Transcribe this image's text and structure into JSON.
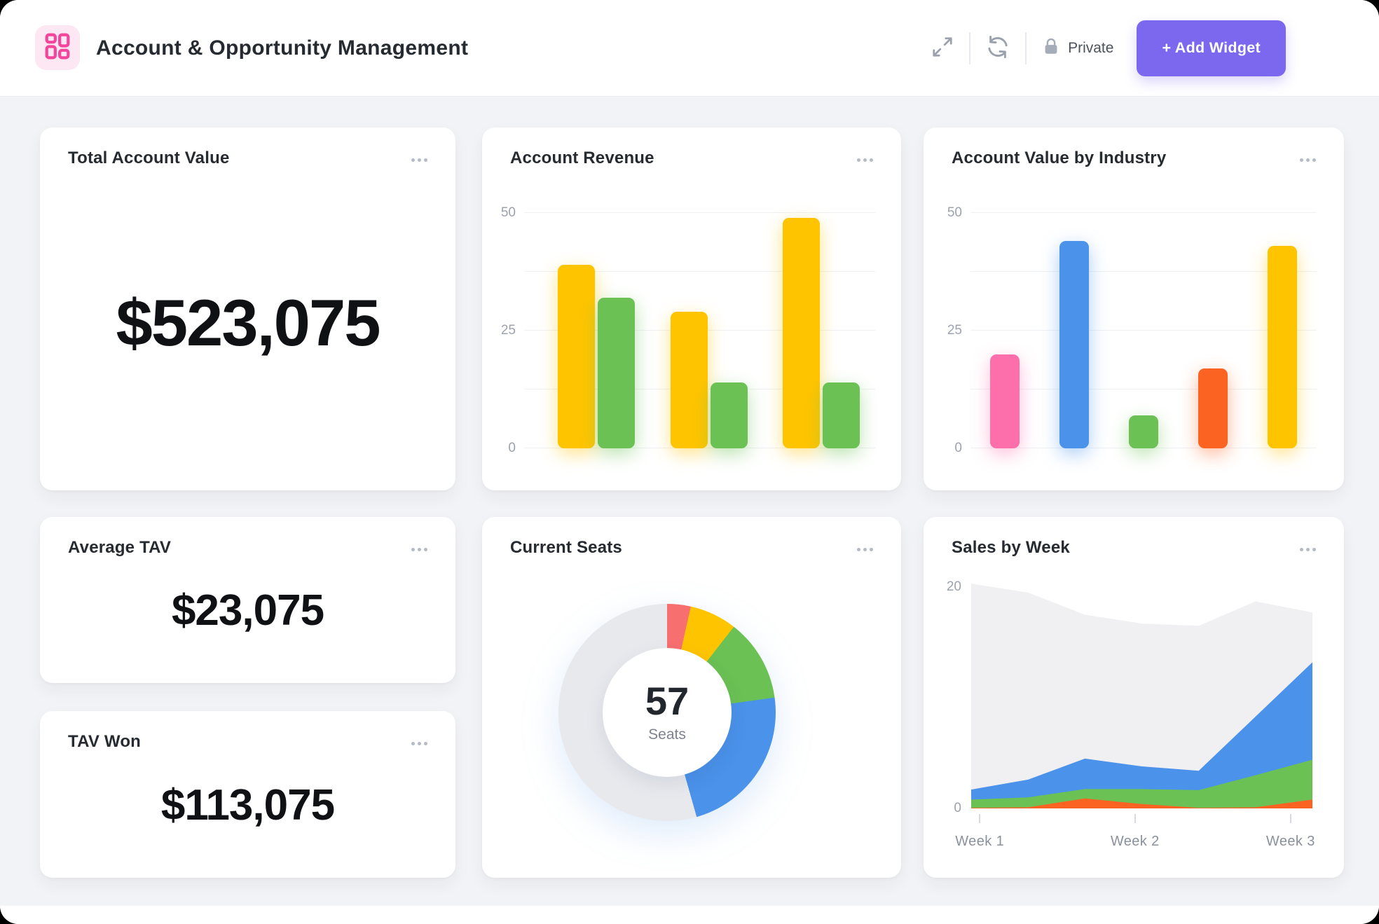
{
  "header": {
    "title": "Account & Opportunity Management",
    "privacy": {
      "label": "Private",
      "icon": "lock-icon"
    },
    "add_widget": {
      "label": "+ Add Widget"
    },
    "tools": [
      {
        "icon": "expand-icon"
      },
      {
        "icon": "refresh-icon"
      }
    ]
  },
  "cards": {
    "total_account_value": {
      "title": "Total Account Value",
      "value": "$523,075"
    },
    "account_revenue": {
      "title": "Account Revenue"
    },
    "account_value_by_industry": {
      "title": "Account Value by Industry"
    },
    "average_tav": {
      "title": "Average TAV",
      "value": "$23,075"
    },
    "tav_won": {
      "title": "TAV Won",
      "value": "$113,075"
    },
    "current_seats": {
      "title": "Current Seats",
      "center_value": "57",
      "center_label": "Seats"
    },
    "sales_by_week": {
      "title": "Sales by Week"
    }
  },
  "colors": {
    "accent_purple": "#7B68EE",
    "yellow": "#FFC400",
    "green": "#6BC153",
    "blue": "#4A92EA",
    "pink": "#FC6FAB",
    "orange": "#FB6322",
    "coral": "#F76F6F",
    "donut_gray": "#E8E9ED",
    "area_gray": "#F0F0F2",
    "tile_pink_bg": "#FCE7F2",
    "tile_pink": "#F4449B"
  },
  "chart_data": [
    {
      "id": "account_revenue",
      "type": "bar",
      "title": "Account Revenue",
      "x_labels": [],
      "series": [
        {
          "name": "series-yellow",
          "color": "#FFC400",
          "values": [
            39,
            29,
            49
          ]
        },
        {
          "name": "series-green",
          "color": "#6BC153",
          "values": [
            32,
            14,
            14
          ]
        }
      ],
      "ylim": [
        0,
        50
      ],
      "yticks": [
        0,
        25,
        50
      ],
      "gridline_step": 12.5,
      "legend": false
    },
    {
      "id": "account_value_by_industry",
      "type": "bar",
      "title": "Account Value by Industry",
      "x_labels": [],
      "series": [
        {
          "name": "account-value",
          "values": [
            20,
            44,
            7,
            17,
            43
          ],
          "colors": [
            "#FC6FAB",
            "#4A92EA",
            "#6BC153",
            "#FB6322",
            "#FFC400"
          ]
        }
      ],
      "ylim": [
        0,
        50
      ],
      "yticks": [
        0,
        25,
        50
      ],
      "gridline_step": 12.5,
      "legend": false
    },
    {
      "id": "current_seats",
      "type": "pie",
      "title": "Current Seats",
      "total": 57,
      "center_value": "57",
      "center_label": "Seats",
      "segments": [
        {
          "name": "segment-coral",
          "value": 2,
          "color": "#F76F6F"
        },
        {
          "name": "segment-yellow",
          "value": 4,
          "color": "#FFC400"
        },
        {
          "name": "segment-green",
          "value": 7,
          "color": "#6BC153"
        },
        {
          "name": "segment-blue",
          "value": 13,
          "color": "#4A92EA"
        },
        {
          "name": "segment-gray-remainder",
          "value": 31,
          "color": "#E8E9ED"
        }
      ],
      "legend": false
    },
    {
      "id": "sales_by_week",
      "type": "area",
      "title": "Sales by Week",
      "x_labels": [
        "Week 1",
        "Week 2",
        "Week 3"
      ],
      "x_points": 7,
      "series": [
        {
          "name": "series-gray",
          "color": "#F0F0F2",
          "values": [
            20.3,
            19.5,
            17.5,
            16.7,
            16.5,
            18.7,
            17.7
          ]
        },
        {
          "name": "series-blue",
          "color": "#4A92EA",
          "values": [
            1.7,
            2.6,
            4.5,
            3.8,
            3.4,
            8.3,
            13.2
          ]
        },
        {
          "name": "series-green",
          "color": "#6BC153",
          "values": [
            0.8,
            1.0,
            1.75,
            1.75,
            1.65,
            3.0,
            4.4
          ]
        },
        {
          "name": "series-orange",
          "color": "#FB6322",
          "values": [
            0.05,
            0.1,
            0.9,
            0.4,
            0.05,
            0.1,
            0.8
          ]
        }
      ],
      "ylim": [
        0,
        20
      ],
      "yticks": [
        0,
        20
      ],
      "grid": false,
      "legend": false
    }
  ]
}
